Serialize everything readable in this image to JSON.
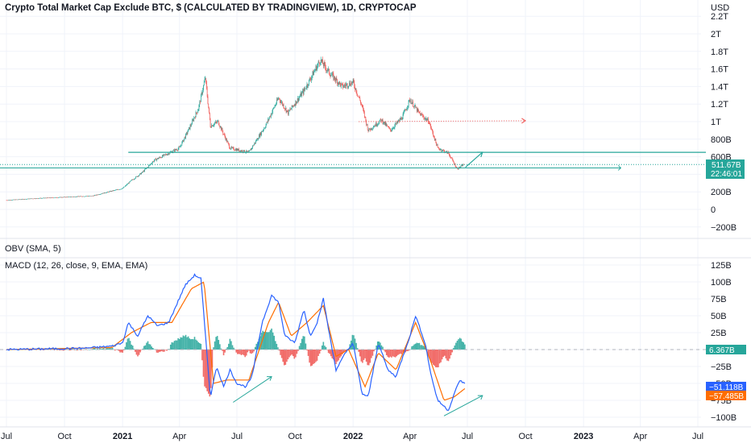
{
  "chart_data": [
    {
      "type": "candlestick",
      "title": "Crypto Total Market Cap Exclude BTC, $ (CALCULATED BY TRADINGVIEW), 1D, CRYPTOCAP",
      "currency": "USD",
      "ytick_labels": [
        "−200B",
        "0",
        "200B",
        "400B",
        "600B",
        "800B",
        "1T",
        "1.2T",
        "1.4T",
        "1.6T",
        "1.8T",
        "2T",
        "2.2T"
      ],
      "price_tag": "511.67B",
      "countdown": "22:46:01",
      "horizontal_levels": [
        {
          "value": 650,
          "color": "#26a69a"
        },
        {
          "value": 473,
          "color": "#26a69a"
        }
      ],
      "series_close_approx": [
        [
          "2020-07-01",
          105
        ],
        [
          "2020-08-15",
          125
        ],
        [
          "2020-10-01",
          140
        ],
        [
          "2020-11-15",
          155
        ],
        [
          "2020-12-15",
          210
        ],
        [
          "2021-01-01",
          240
        ],
        [
          "2021-01-15",
          330
        ],
        [
          "2021-02-01",
          420
        ],
        [
          "2021-02-20",
          560
        ],
        [
          "2021-03-15",
          640
        ],
        [
          "2021-04-01",
          700
        ],
        [
          "2021-04-15",
          900
        ],
        [
          "2021-05-01",
          1150
        ],
        [
          "2021-05-12",
          1500
        ],
        [
          "2021-05-20",
          950
        ],
        [
          "2021-06-01",
          1000
        ],
        [
          "2021-06-20",
          700
        ],
        [
          "2021-07-01",
          680
        ],
        [
          "2021-07-20",
          650
        ],
        [
          "2021-08-15",
          950
        ],
        [
          "2021-09-05",
          1270
        ],
        [
          "2021-09-20",
          1100
        ],
        [
          "2021-10-15",
          1350
        ],
        [
          "2021-11-01",
          1580
        ],
        [
          "2021-11-10",
          1700
        ],
        [
          "2021-11-25",
          1550
        ],
        [
          "2021-12-15",
          1400
        ],
        [
          "2022-01-01",
          1450
        ],
        [
          "2022-01-15",
          1180
        ],
        [
          "2022-01-25",
          900
        ],
        [
          "2022-02-15",
          1020
        ],
        [
          "2022-03-01",
          900
        ],
        [
          "2022-03-20",
          1050
        ],
        [
          "2022-04-01",
          1250
        ],
        [
          "2022-04-15",
          1100
        ],
        [
          "2022-05-01",
          1000
        ],
        [
          "2022-05-15",
          700
        ],
        [
          "2022-06-01",
          640
        ],
        [
          "2022-06-15",
          460
        ],
        [
          "2022-06-25",
          512
        ]
      ]
    },
    {
      "type": "line",
      "title": "OBV (SMA, 5)"
    },
    {
      "type": "line+bar",
      "title": "MACD (12, 26, close, 9, EMA, EMA)",
      "ytick_labels": [
        "−100B",
        "−75B",
        "−50B",
        "−25B",
        "0",
        "25B",
        "50B",
        "75B",
        "100B",
        "125B"
      ],
      "value_tags": [
        {
          "text": "6.367B",
          "color": "#26a69a"
        },
        {
          "text": "−51.118B",
          "color": "#2962ff"
        },
        {
          "text": "−57.485B",
          "color": "#ff6d00"
        }
      ],
      "series": [
        {
          "name": "MACD",
          "color": "#2962ff"
        },
        {
          "name": "Signal",
          "color": "#ff6d00"
        },
        {
          "name": "Histogram",
          "color": "#26a69a"
        }
      ],
      "macd_approx": [
        [
          "2020-07-01",
          0
        ],
        [
          "2020-09-01",
          1
        ],
        [
          "2020-11-01",
          2
        ],
        [
          "2020-12-15",
          5
        ],
        [
          "2021-01-01",
          10
        ],
        [
          "2021-01-10",
          40
        ],
        [
          "2021-01-25",
          20
        ],
        [
          "2021-02-10",
          50
        ],
        [
          "2021-02-25",
          35
        ],
        [
          "2021-03-15",
          40
        ],
        [
          "2021-04-10",
          95
        ],
        [
          "2021-04-25",
          110
        ],
        [
          "2021-05-05",
          105
        ],
        [
          "2021-05-20",
          -70
        ],
        [
          "2021-05-30",
          -25
        ],
        [
          "2021-06-10",
          -55
        ],
        [
          "2021-06-20",
          -30
        ],
        [
          "2021-07-01",
          -50
        ],
        [
          "2021-07-15",
          -55
        ],
        [
          "2021-07-25",
          -40
        ],
        [
          "2021-08-10",
          40
        ],
        [
          "2021-08-25",
          80
        ],
        [
          "2021-09-05",
          70
        ],
        [
          "2021-09-15",
          20
        ],
        [
          "2021-10-01",
          10
        ],
        [
          "2021-10-15",
          60
        ],
        [
          "2021-10-25",
          20
        ],
        [
          "2021-11-05",
          40
        ],
        [
          "2021-11-15",
          75
        ],
        [
          "2021-11-25",
          20
        ],
        [
          "2021-12-05",
          -30
        ],
        [
          "2021-12-20",
          -5
        ],
        [
          "2022-01-01",
          10
        ],
        [
          "2022-01-15",
          -65
        ],
        [
          "2022-01-25",
          -70
        ],
        [
          "2022-02-10",
          10
        ],
        [
          "2022-02-25",
          -30
        ],
        [
          "2022-03-10",
          -40
        ],
        [
          "2022-04-01",
          20
        ],
        [
          "2022-04-10",
          50
        ],
        [
          "2022-04-25",
          10
        ],
        [
          "2022-05-05",
          -40
        ],
        [
          "2022-05-15",
          -75
        ],
        [
          "2022-06-01",
          -90
        ],
        [
          "2022-06-12",
          -60
        ],
        [
          "2022-06-20",
          -45
        ],
        [
          "2022-06-28",
          -52
        ]
      ],
      "signal_approx": [
        [
          "2020-07-01",
          0
        ],
        [
          "2020-12-15",
          3
        ],
        [
          "2021-01-15",
          25
        ],
        [
          "2021-02-15",
          40
        ],
        [
          "2021-03-20",
          40
        ],
        [
          "2021-04-20",
          90
        ],
        [
          "2021-05-10",
          100
        ],
        [
          "2021-05-25",
          -50
        ],
        [
          "2021-06-15",
          -45
        ],
        [
          "2021-07-20",
          -45
        ],
        [
          "2021-08-20",
          40
        ],
        [
          "2021-09-05",
          70
        ],
        [
          "2021-09-25",
          20
        ],
        [
          "2021-10-20",
          40
        ],
        [
          "2021-11-15",
          65
        ],
        [
          "2021-12-05",
          -10
        ],
        [
          "2021-12-25",
          0
        ],
        [
          "2022-01-20",
          -55
        ],
        [
          "2022-02-10",
          -5
        ],
        [
          "2022-03-10",
          -30
        ],
        [
          "2022-04-10",
          40
        ],
        [
          "2022-05-05",
          -20
        ],
        [
          "2022-05-25",
          -75
        ],
        [
          "2022-06-10",
          -70
        ],
        [
          "2022-06-28",
          -57
        ]
      ]
    }
  ],
  "xaxis": {
    "labels": [
      {
        "text": "Jul",
        "date": "2020-07-01",
        "bold": false
      },
      {
        "text": "Oct",
        "date": "2020-10-01",
        "bold": false
      },
      {
        "text": "2021",
        "date": "2021-01-01",
        "bold": true
      },
      {
        "text": "Apr",
        "date": "2021-04-01",
        "bold": false
      },
      {
        "text": "Jul",
        "date": "2021-07-01",
        "bold": false
      },
      {
        "text": "Oct",
        "date": "2021-10-01",
        "bold": false
      },
      {
        "text": "2022",
        "date": "2022-01-01",
        "bold": true
      },
      {
        "text": "Apr",
        "date": "2022-04-01",
        "bold": false
      },
      {
        "text": "Jul",
        "date": "2022-07-01",
        "bold": false
      },
      {
        "text": "Oct",
        "date": "2022-10-01",
        "bold": false
      },
      {
        "text": "2023",
        "date": "2023-01-01",
        "bold": true
      },
      {
        "text": "Apr",
        "date": "2023-04-01",
        "bold": false
      },
      {
        "text": "Jul",
        "date": "2023-07-01",
        "bold": false
      }
    ]
  },
  "colors": {
    "up": "#26a69a",
    "down": "#ef5350",
    "level": "#26a69a",
    "macd": "#2962ff",
    "signal": "#ff6d00",
    "dotted_arrow": "#ef5350"
  }
}
